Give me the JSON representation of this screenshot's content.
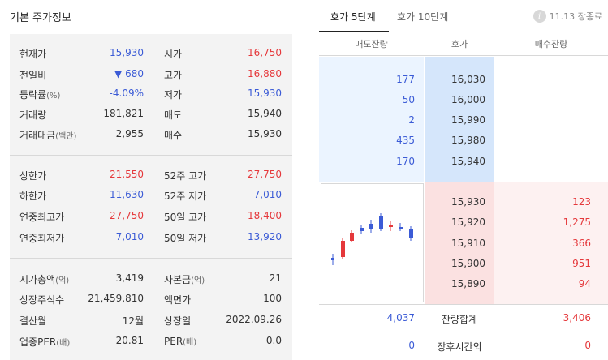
{
  "left": {
    "title": "기본 주가정보",
    "rows": [
      {
        "label": "현재가",
        "sub": "",
        "value": "15,930",
        "vclass": "down",
        "label2": "시가",
        "sub2": "",
        "value2": "16,750",
        "vclass2": "up"
      },
      {
        "label": "전일비",
        "sub": "",
        "value": "▼ 680",
        "vclass": "down",
        "label2": "고가",
        "sub2": "",
        "value2": "16,880",
        "vclass2": "up"
      },
      {
        "label": "등락률",
        "sub": "(%)",
        "value": "-4.09%",
        "vclass": "down",
        "label2": "저가",
        "sub2": "",
        "value2": "15,930",
        "vclass2": "down"
      },
      {
        "label": "거래량",
        "sub": "",
        "value": "181,821",
        "vclass": "",
        "label2": "매도",
        "sub2": "",
        "value2": "15,940",
        "vclass2": ""
      },
      {
        "label": "거래대금",
        "sub": "(백만)",
        "value": "2,955",
        "vclass": "",
        "label2": "매수",
        "sub2": "",
        "value2": "15,930",
        "vclass2": ""
      },
      {
        "label": "상한가",
        "sub": "",
        "value": "21,550",
        "vclass": "up",
        "label2": "52주 고가",
        "sub2": "",
        "value2": "27,750",
        "vclass2": "up"
      },
      {
        "label": "하한가",
        "sub": "",
        "value": "11,630",
        "vclass": "down",
        "label2": "52주 저가",
        "sub2": "",
        "value2": "7,010",
        "vclass2": "down"
      },
      {
        "label": "연중최고가",
        "sub": "",
        "value": "27,750",
        "vclass": "up",
        "label2": "50일 고가",
        "sub2": "",
        "value2": "18,400",
        "vclass2": "up"
      },
      {
        "label": "연중최저가",
        "sub": "",
        "value": "7,010",
        "vclass": "down",
        "label2": "50일 저가",
        "sub2": "",
        "value2": "13,920",
        "vclass2": "down"
      },
      {
        "label": "시가총액",
        "sub": "(억)",
        "value": "3,419",
        "vclass": "",
        "label2": "자본금",
        "sub2": "(억)",
        "value2": "21",
        "vclass2": ""
      },
      {
        "label": "상장주식수",
        "sub": "",
        "value": "21,459,810",
        "vclass": "",
        "label2": "액면가",
        "sub2": "",
        "value2": "100",
        "vclass2": ""
      },
      {
        "label": "결산월",
        "sub": "",
        "value": "12월",
        "vclass": "",
        "label2": "상장일",
        "sub2": "",
        "value2": "2022.09.26",
        "vclass2": ""
      },
      {
        "label": "업종PER",
        "sub": "(배)",
        "value": "20.81",
        "vclass": "",
        "label2": "PER",
        "sub2": "(배)",
        "value2": "0.0",
        "vclass2": ""
      }
    ]
  },
  "right": {
    "tabs": [
      "호가 5단계",
      "호가 10단계"
    ],
    "status": "11.13 장종료",
    "status_icon": "i",
    "headers": {
      "ask_qty": "매도잔량",
      "price": "호가",
      "bid_qty": "매수잔량"
    },
    "asks": [
      {
        "qty": "177",
        "price": "16,030"
      },
      {
        "qty": "50",
        "price": "16,000"
      },
      {
        "qty": "2",
        "price": "15,990"
      },
      {
        "qty": "435",
        "price": "15,980"
      },
      {
        "qty": "170",
        "price": "15,940"
      }
    ],
    "bids": [
      {
        "price": "15,930",
        "qty": "123"
      },
      {
        "price": "15,920",
        "qty": "1,275"
      },
      {
        "price": "15,910",
        "qty": "366"
      },
      {
        "price": "15,900",
        "qty": "951"
      },
      {
        "price": "15,890",
        "qty": "94"
      }
    ],
    "total": {
      "ask": "4,037",
      "label": "잔량합계",
      "bid": "3,406"
    },
    "after": {
      "ask": "0",
      "label": "장후시간외",
      "bid": "0"
    }
  },
  "colors": {
    "up": "#e5383b",
    "down": "#3b5bd6",
    "ask_bg": "#d5e6fb",
    "bid_bg": "#fbe1e1"
  }
}
